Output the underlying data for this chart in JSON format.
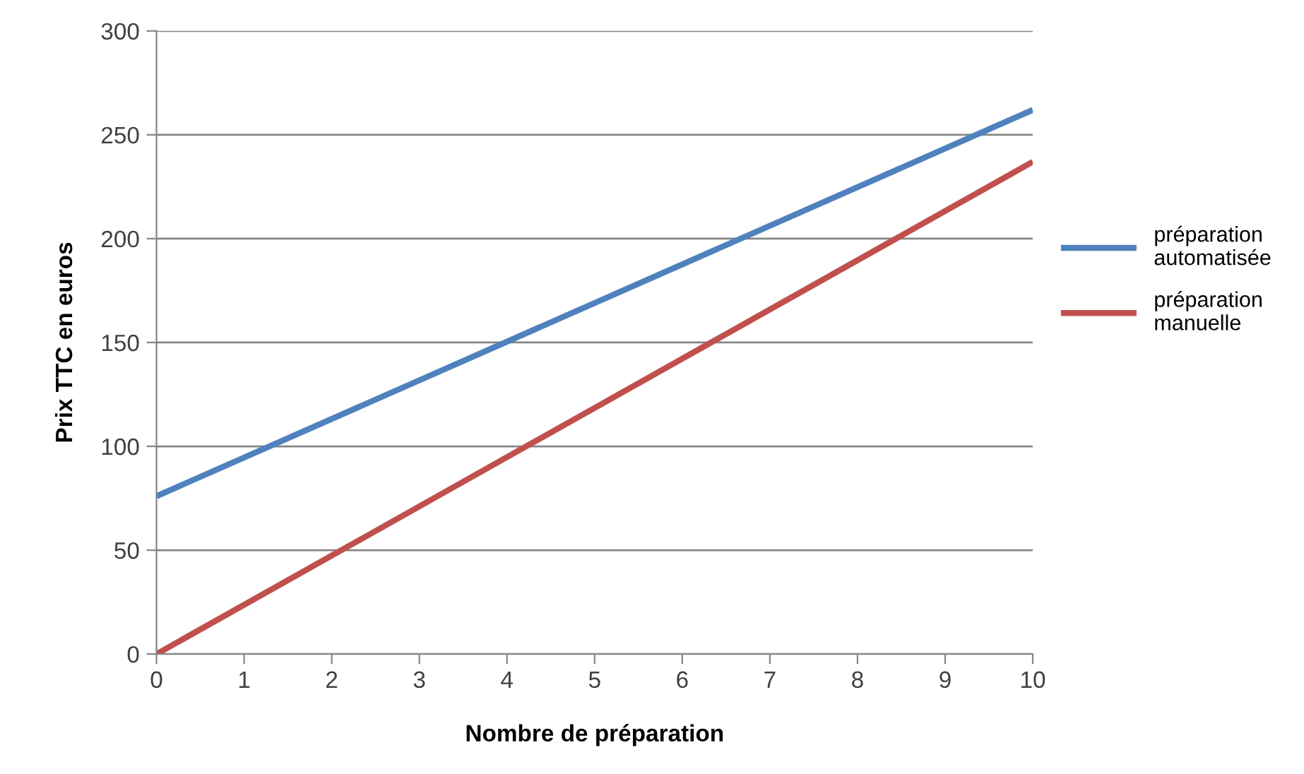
{
  "chart_data": {
    "type": "line",
    "xlabel": "Nombre de préparation",
    "ylabel": "Prix TTC en euros",
    "x": [
      0,
      10
    ],
    "series": [
      {
        "name": "préparation\nautomatisée",
        "color": "#4f81bd",
        "values": [
          76,
          262
        ]
      },
      {
        "name": "préparation\nmanuelle",
        "color": "#c0504d",
        "values": [
          0,
          237
        ]
      }
    ],
    "xlim": [
      0,
      10
    ],
    "xticks": [
      0,
      1,
      2,
      3,
      4,
      5,
      6,
      7,
      8,
      9,
      10
    ],
    "ylim": [
      0,
      300
    ],
    "yticks": [
      0,
      50,
      100,
      150,
      200,
      250,
      300
    ],
    "grid": "y",
    "legend": "right",
    "marker": "none",
    "line_style": "solid"
  }
}
